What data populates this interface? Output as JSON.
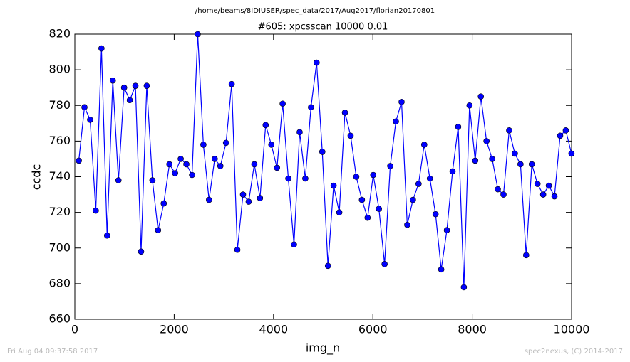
{
  "chart_data": {
    "type": "line",
    "suptitle": "/home/beams/8IDIUSER/spec_data/2017/Aug2017/florian20170801",
    "title": "#605: xpcsscan 10000 0.01",
    "xlabel": "img_n",
    "ylabel": "ccdc",
    "footer_left": "Fri Aug 04 09:37:58 2017",
    "footer_right": "spec2nexus, (C) 2014-2017",
    "x": [
      80,
      194,
      308,
      422,
      536,
      650,
      764,
      878,
      992,
      1106,
      1220,
      1334,
      1448,
      1562,
      1676,
      1790,
      1904,
      2018,
      2132,
      2246,
      2360,
      2474,
      2588,
      2702,
      2816,
      2930,
      3044,
      3158,
      3272,
      3386,
      3500,
      3614,
      3728,
      3842,
      3956,
      4070,
      4184,
      4298,
      4412,
      4526,
      4640,
      4754,
      4868,
      4982,
      5096,
      5210,
      5324,
      5438,
      5552,
      5666,
      5780,
      5894,
      6008,
      6122,
      6236,
      6350,
      6464,
      6578,
      6692,
      6806,
      6920,
      7034,
      7148,
      7262,
      7376,
      7490,
      7604,
      7718,
      7832,
      7946,
      8060,
      8174,
      8288,
      8402,
      8516,
      8630,
      8744,
      8858,
      8972,
      9086,
      9200,
      9314,
      9428,
      9542,
      9656,
      9770,
      9884,
      9998
    ],
    "series": [
      {
        "color": "#0000ff",
        "marker_color": "#0000ff",
        "values": [
          749,
          779,
          772,
          721,
          812,
          707,
          794,
          738,
          790,
          783,
          791,
          698,
          791,
          738,
          710,
          725,
          747,
          742,
          750,
          747,
          741,
          820,
          758,
          727,
          750,
          746,
          759,
          792,
          699,
          730,
          726,
          747,
          728,
          769,
          758,
          745,
          781,
          739,
          702,
          765,
          739,
          779,
          804,
          754,
          690,
          735,
          720,
          776,
          763,
          740,
          727,
          717,
          741,
          722,
          691,
          746,
          771,
          782,
          713,
          727,
          736,
          758,
          739,
          719,
          688,
          710,
          743,
          768,
          678,
          780,
          749,
          785,
          760,
          750,
          733,
          730,
          766,
          753,
          747,
          696,
          747,
          736,
          730,
          735,
          729,
          763,
          766,
          753
        ]
      }
    ],
    "xlim": [
      0,
      10000
    ],
    "xticks": [
      0,
      2000,
      4000,
      6000,
      8000,
      10000
    ],
    "ylim": [
      660,
      820
    ],
    "yticks": [
      660,
      680,
      700,
      720,
      740,
      760,
      780,
      800,
      820
    ],
    "grid": false
  }
}
